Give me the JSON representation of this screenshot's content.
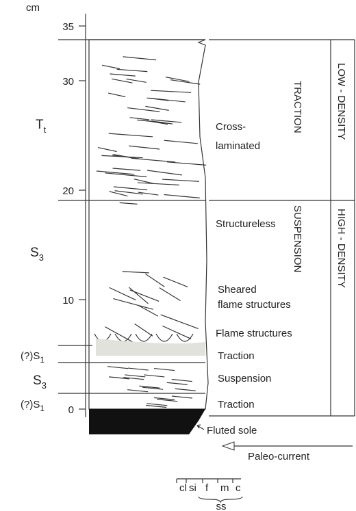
{
  "axis": {
    "unit": "cm",
    "ticks": [
      0,
      10,
      20,
      30,
      35
    ]
  },
  "units": [
    {
      "text": "T",
      "sub": "t"
    },
    {
      "text": "S",
      "sub": "3"
    },
    {
      "text": "(?)S",
      "sub": "1"
    },
    {
      "text": "S",
      "sub": "3"
    },
    {
      "text": "(?)S",
      "sub": "1"
    }
  ],
  "descriptions": [
    "Cross-",
    "laminated",
    "Structureless",
    "Sheared",
    "flame structures",
    "Flame structures",
    "Traction",
    "Suspension",
    "Traction",
    "Fluted sole"
  ],
  "processes": [
    "TRACTION",
    "SUSPENSION"
  ],
  "densities": [
    "LOW - DENSITY",
    "HIGH - DENSITY"
  ],
  "current": "Paleo-current",
  "grain_scale": {
    "classes": [
      "cl",
      "si",
      "f",
      "m",
      "c"
    ],
    "group": "ss"
  }
}
